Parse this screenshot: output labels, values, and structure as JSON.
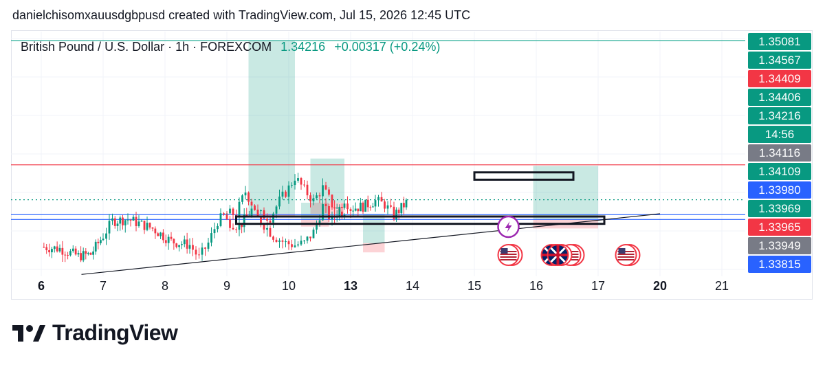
{
  "header": {
    "caption": "danielchisomxauusdgbpusd created with TradingView.com, Jul 15, 2026 12:45 UTC"
  },
  "legend": {
    "symbol": "British Pound / U.S. Dollar · 1h · FOREXCOM",
    "price": "1.34216",
    "change": "+0.00317 (+0.24%)",
    "change_color": "#089981"
  },
  "footer": {
    "brand": "TradingView",
    "logo_icon": "tradingview-logo-icon"
  },
  "chart_data": {
    "type": "candlestick",
    "ylim": [
      1.338,
      1.3513
    ],
    "x_ticks": [
      {
        "label": "6",
        "bold": true
      },
      {
        "label": "7",
        "bold": false
      },
      {
        "label": "8",
        "bold": false
      },
      {
        "label": "9",
        "bold": false
      },
      {
        "label": "10",
        "bold": false
      },
      {
        "label": "13",
        "bold": true
      },
      {
        "label": "14",
        "bold": false
      },
      {
        "label": "15",
        "bold": false
      },
      {
        "label": "16",
        "bold": false
      },
      {
        "label": "17",
        "bold": false
      },
      {
        "label": "20",
        "bold": true
      },
      {
        "label": "21",
        "bold": false
      }
    ],
    "price_path": [
      [
        6.0,
        1.3396
      ],
      [
        6.3,
        1.3395
      ],
      [
        6.6,
        1.3391
      ],
      [
        6.8,
        1.3392
      ],
      [
        7.0,
        1.3402
      ],
      [
        7.15,
        1.341
      ],
      [
        7.4,
        1.3411
      ],
      [
        7.8,
        1.3406
      ],
      [
        8.1,
        1.3399
      ],
      [
        8.4,
        1.3397
      ],
      [
        8.55,
        1.339
      ],
      [
        8.7,
        1.3398
      ],
      [
        8.85,
        1.341
      ],
      [
        9.0,
        1.3414
      ],
      [
        9.15,
        1.3414
      ],
      [
        9.3,
        1.3426
      ],
      [
        9.5,
        1.3414
      ],
      [
        9.7,
        1.3412
      ],
      [
        9.85,
        1.3421
      ],
      [
        10.0,
        1.3428
      ],
      [
        10.1,
        1.3434
      ],
      [
        10.25,
        1.3427
      ],
      [
        10.4,
        1.3421
      ],
      [
        10.55,
        1.3428
      ],
      [
        10.7,
        1.3419
      ],
      [
        10.9,
        1.3413
      ],
      [
        11.0,
        1.341
      ],
      [
        11.2,
        1.3407
      ],
      [
        11.4,
        1.3416
      ],
      [
        11.5,
        1.3411
      ],
      [
        11.6,
        1.3408
      ],
      [
        11.75,
        1.3402
      ],
      [
        11.95,
        1.3398
      ],
      [
        12.1,
        1.3397
      ],
      [
        12.25,
        1.3398
      ],
      [
        12.4,
        1.3404
      ],
      [
        12.55,
        1.3418
      ],
      [
        12.7,
        1.341
      ],
      [
        12.9,
        1.3422
      ],
      [
        13.0,
        1.3417
      ],
      [
        13.2,
        1.3418
      ],
      [
        13.4,
        1.3421
      ],
      [
        13.55,
        1.3419
      ],
      [
        13.7,
        1.3413
      ],
      [
        13.9,
        1.342
      ]
    ],
    "horizontal_lines": [
      {
        "value": 1.34406,
        "color": "#f23645",
        "style": "solid"
      },
      {
        "value": 1.34216,
        "color": "#089981",
        "style": "dotted"
      },
      {
        "value": 1.34135,
        "color": "#2962ff",
        "style": "solid"
      },
      {
        "value": 1.34109,
        "color": "#2962ff",
        "style": "solid"
      },
      {
        "value": 1.35081,
        "color": "#22ab94",
        "style": "solid"
      }
    ],
    "trendline": {
      "x1": 6.65,
      "y1": 1.3381,
      "x2": 20.0,
      "y2": 1.3414,
      "color": "#131722"
    },
    "zones": [
      {
        "x1": 9.35,
        "x2": 10.1,
        "top": 1.3508,
        "bottom": 1.3428,
        "kind": "profit"
      },
      {
        "x1": 9.35,
        "x2": 10.1,
        "top": 1.3428,
        "bottom": 1.3414,
        "kind": "profit"
      },
      {
        "x1": 9.35,
        "x2": 10.1,
        "top": 1.3414,
        "bottom": 1.3412,
        "kind": "loss"
      },
      {
        "x1": 10.35,
        "x2": 10.9,
        "top": 1.3444,
        "bottom": 1.342,
        "kind": "profit"
      },
      {
        "x1": 10.35,
        "x2": 10.9,
        "top": 1.342,
        "bottom": 1.3414,
        "kind": "loss"
      },
      {
        "x1": 12.2,
        "x2": 12.65,
        "top": 1.342,
        "bottom": 1.3411,
        "kind": "profit"
      },
      {
        "x1": 12.2,
        "x2": 12.65,
        "top": 1.3411,
        "bottom": 1.3407,
        "kind": "loss"
      },
      {
        "x1": 13.2,
        "x2": 13.55,
        "top": 1.3414,
        "bottom": 1.3398,
        "kind": "profit"
      },
      {
        "x1": 13.2,
        "x2": 13.55,
        "top": 1.3398,
        "bottom": 1.3393,
        "kind": "loss"
      },
      {
        "x1": 15.95,
        "x2": 17.0,
        "top": 1.344,
        "bottom": 1.3411,
        "kind": "profit"
      },
      {
        "x1": 15.95,
        "x2": 17.0,
        "top": 1.3411,
        "bottom": 1.3406,
        "kind": "loss"
      }
    ],
    "rectangles": [
      {
        "x1": 9.15,
        "x2": 19.1,
        "top": 1.3411,
        "bottom": 1.341,
        "color": "#131722"
      },
      {
        "x1": 15.0,
        "x2": 16.6,
        "top": 1.3435,
        "bottom": 1.3434,
        "color": "#131722"
      }
    ],
    "price_labels": [
      {
        "text": "1.35081",
        "bg": "#089981",
        "fg": "#ffffff"
      },
      {
        "text": "1.34567",
        "bg": "#089981",
        "fg": "#ffffff"
      },
      {
        "text": "1.34409",
        "bg": "#f23645",
        "fg": "#ffffff"
      },
      {
        "text": "1.34406",
        "bg": "#089981",
        "fg": "#ffffff"
      },
      {
        "text": "1.34216",
        "bg": "#089981",
        "fg": "#ffffff"
      },
      {
        "text": "14:56",
        "bg": "#089981",
        "fg": "#ffffff"
      },
      {
        "text": "1.34116",
        "bg": "#787b86",
        "fg": "#ffffff"
      },
      {
        "text": "1.34109",
        "bg": "#089981",
        "fg": "#ffffff"
      },
      {
        "text": "1.33980",
        "bg": "#2962ff",
        "fg": "#ffffff"
      },
      {
        "text": "1.33969",
        "bg": "#089981",
        "fg": "#ffffff"
      },
      {
        "text": "1.33965",
        "bg": "#f23645",
        "fg": "#ffffff"
      },
      {
        "text": "1.33949",
        "bg": "#787b86",
        "fg": "#ffffff"
      },
      {
        "text": "1.33815",
        "bg": "#2962ff",
        "fg": "#ffffff"
      }
    ],
    "event_icons": [
      {
        "name": "us-flag-icon",
        "x": 15.55,
        "row": 1
      },
      {
        "name": "uk-flag-icon",
        "x": 16.25,
        "row": 1
      },
      {
        "name": "us-flag-icon",
        "x": 16.55,
        "row": 1
      },
      {
        "name": "us-flag-icon",
        "x": 17.45,
        "row": 1
      },
      {
        "name": "uk-flag-icon",
        "x": 18.35,
        "row": 1
      },
      {
        "name": "lightning-icon",
        "x": 15.55,
        "row": 0
      }
    ],
    "colors": {
      "up": "#089981",
      "down": "#f23645",
      "profit_zone": "rgba(8,153,129,0.22)",
      "loss_zone": "rgba(242,54,69,0.22)"
    }
  }
}
